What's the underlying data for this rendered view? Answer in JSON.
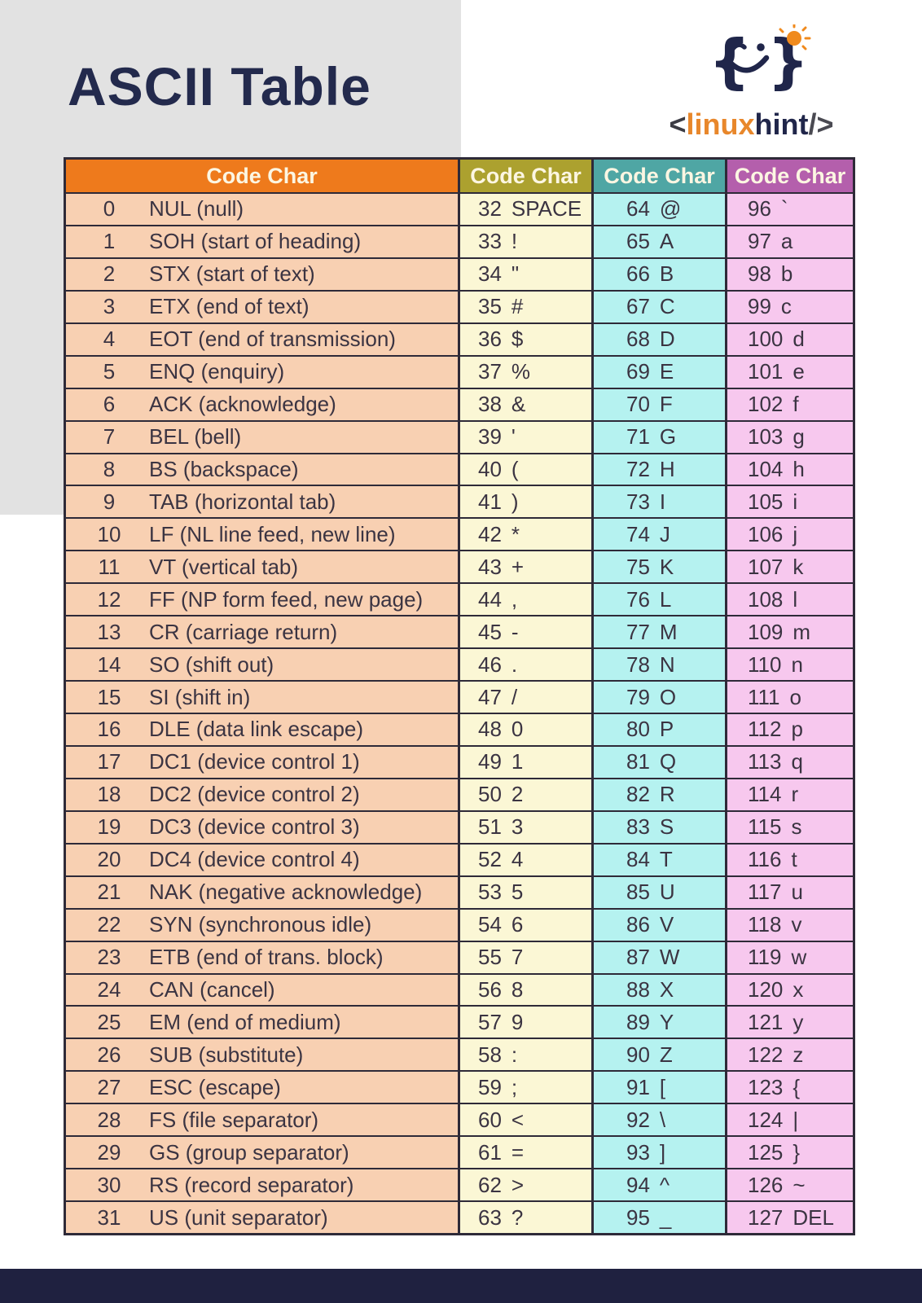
{
  "title": "ASCII Table",
  "logo": {
    "open": "<",
    "name1": "linux",
    "name2": "hint",
    "close": "/>",
    "icon": "winking-smiley-braces-with-sun"
  },
  "colors": {
    "page_bg": "#ffffff",
    "gray_panel": "#e2e2e2",
    "title_navy": "#232a4d",
    "footer_navy": "#1f2140",
    "border": "#2e2a38",
    "header_text": "#fcf6e2",
    "cell_text": "#3b3442",
    "col1_header": "#ee7a1c",
    "col1_row": "#f8d0b2",
    "col2_header": "#aca12f",
    "col2_row": "#fbf7d5",
    "col3_header": "#4fa6a4",
    "col3_row": "#b5f2f0",
    "col4_header": "#b45fac",
    "col4_row": "#f7c8ee",
    "logo_orange": "#e8872b",
    "logo_navy": "#20264a"
  },
  "table": {
    "columns": [
      {
        "header": "Code Char",
        "theme": "orange",
        "rows": [
          {
            "code": "0",
            "char": "NUL (null)"
          },
          {
            "code": "1",
            "char": "SOH (start of heading)"
          },
          {
            "code": "2",
            "char": "STX (start of text)"
          },
          {
            "code": "3",
            "char": "ETX (end of text)"
          },
          {
            "code": "4",
            "char": "EOT (end of transmission)"
          },
          {
            "code": "5",
            "char": "ENQ (enquiry)"
          },
          {
            "code": "6",
            "char": "ACK (acknowledge)"
          },
          {
            "code": "7",
            "char": "BEL (bell)"
          },
          {
            "code": "8",
            "char": "BS  (backspace)"
          },
          {
            "code": "9",
            "char": "TAB (horizontal tab)"
          },
          {
            "code": "10",
            "char": "LF  (NL line feed, new line)"
          },
          {
            "code": "11",
            "char": "VT  (vertical tab)"
          },
          {
            "code": "12",
            "char": "FF  (NP form feed, new page)"
          },
          {
            "code": "13",
            "char": "CR  (carriage return)"
          },
          {
            "code": "14",
            "char": "SO  (shift out)"
          },
          {
            "code": "15",
            "char": "SI  (shift in)"
          },
          {
            "code": "16",
            "char": "DLE (data link escape)"
          },
          {
            "code": "17",
            "char": "DC1 (device control 1)"
          },
          {
            "code": "18",
            "char": "DC2 (device control 2)"
          },
          {
            "code": "19",
            "char": "DC3 (device control 3)"
          },
          {
            "code": "20",
            "char": "DC4 (device control 4)"
          },
          {
            "code": "21",
            "char": "NAK (negative acknowledge)"
          },
          {
            "code": "22",
            "char": "SYN (synchronous idle)"
          },
          {
            "code": "23",
            "char": "ETB (end of trans. block)"
          },
          {
            "code": "24",
            "char": "CAN (cancel)"
          },
          {
            "code": "25",
            "char": "EM  (end of medium)"
          },
          {
            "code": "26",
            "char": "SUB (substitute)"
          },
          {
            "code": "27",
            "char": "ESC (escape)"
          },
          {
            "code": "28",
            "char": "FS  (file separator)"
          },
          {
            "code": "29",
            "char": "GS  (group separator)"
          },
          {
            "code": "30",
            "char": "RS  (record separator)"
          },
          {
            "code": "31",
            "char": "US  (unit separator)"
          }
        ]
      },
      {
        "header": "Code Char",
        "theme": "yellow",
        "rows": [
          {
            "code": "32",
            "char": "SPACE"
          },
          {
            "code": "33",
            "char": "!"
          },
          {
            "code": "34",
            "char": "\""
          },
          {
            "code": "35",
            "char": "#"
          },
          {
            "code": "36",
            "char": "$"
          },
          {
            "code": "37",
            "char": "%"
          },
          {
            "code": "38",
            "char": "&"
          },
          {
            "code": "39",
            "char": "'"
          },
          {
            "code": "40",
            "char": "("
          },
          {
            "code": "41",
            "char": ")"
          },
          {
            "code": "42",
            "char": "*"
          },
          {
            "code": "43",
            "char": "+"
          },
          {
            "code": "44",
            "char": ","
          },
          {
            "code": "45",
            "char": "-"
          },
          {
            "code": "46",
            "char": "."
          },
          {
            "code": "47",
            "char": "/"
          },
          {
            "code": "48",
            "char": "0"
          },
          {
            "code": "49",
            "char": "1"
          },
          {
            "code": "50",
            "char": "2"
          },
          {
            "code": "51",
            "char": "3"
          },
          {
            "code": "52",
            "char": "4"
          },
          {
            "code": "53",
            "char": "5"
          },
          {
            "code": "54",
            "char": "6"
          },
          {
            "code": "55",
            "char": "7"
          },
          {
            "code": "56",
            "char": "8"
          },
          {
            "code": "57",
            "char": "9"
          },
          {
            "code": "58",
            "char": ":"
          },
          {
            "code": "59",
            "char": ";"
          },
          {
            "code": "60",
            "char": "<"
          },
          {
            "code": "61",
            "char": "="
          },
          {
            "code": "62",
            "char": ">"
          },
          {
            "code": "63",
            "char": "?"
          }
        ]
      },
      {
        "header": "Code Char",
        "theme": "teal",
        "rows": [
          {
            "code": "64",
            "char": "@"
          },
          {
            "code": "65",
            "char": "A"
          },
          {
            "code": "66",
            "char": "B"
          },
          {
            "code": "67",
            "char": "C"
          },
          {
            "code": "68",
            "char": "D"
          },
          {
            "code": "69",
            "char": "E"
          },
          {
            "code": "70",
            "char": "F"
          },
          {
            "code": "71",
            "char": "G"
          },
          {
            "code": "72",
            "char": "H"
          },
          {
            "code": "73",
            "char": "I"
          },
          {
            "code": "74",
            "char": "J"
          },
          {
            "code": "75",
            "char": "K"
          },
          {
            "code": "76",
            "char": "L"
          },
          {
            "code": "77",
            "char": "M"
          },
          {
            "code": "78",
            "char": "N"
          },
          {
            "code": "79",
            "char": "O"
          },
          {
            "code": "80",
            "char": "P"
          },
          {
            "code": "81",
            "char": "Q"
          },
          {
            "code": "82",
            "char": "R"
          },
          {
            "code": "83",
            "char": "S"
          },
          {
            "code": "84",
            "char": "T"
          },
          {
            "code": "85",
            "char": "U"
          },
          {
            "code": "86",
            "char": "V"
          },
          {
            "code": "87",
            "char": "W"
          },
          {
            "code": "88",
            "char": "X"
          },
          {
            "code": "89",
            "char": "Y"
          },
          {
            "code": "90",
            "char": "Z"
          },
          {
            "code": "91",
            "char": "["
          },
          {
            "code": "92",
            "char": "\\"
          },
          {
            "code": "93",
            "char": "]"
          },
          {
            "code": "94",
            "char": "^"
          },
          {
            "code": "95",
            "char": "_"
          }
        ]
      },
      {
        "header": "Code Char",
        "theme": "purple",
        "rows": [
          {
            "code": "96",
            "char": "`"
          },
          {
            "code": "97",
            "char": "a"
          },
          {
            "code": "98",
            "char": "b"
          },
          {
            "code": "99",
            "char": "c"
          },
          {
            "code": "100",
            "char": "d"
          },
          {
            "code": "101",
            "char": "e"
          },
          {
            "code": "102",
            "char": "f"
          },
          {
            "code": "103",
            "char": "g"
          },
          {
            "code": "104",
            "char": "h"
          },
          {
            "code": "105",
            "char": "i"
          },
          {
            "code": "106",
            "char": "j"
          },
          {
            "code": "107",
            "char": "k"
          },
          {
            "code": "108",
            "char": "l"
          },
          {
            "code": "109",
            "char": "m"
          },
          {
            "code": "110",
            "char": "n"
          },
          {
            "code": "111",
            "char": "o"
          },
          {
            "code": "112",
            "char": "p"
          },
          {
            "code": "113",
            "char": "q"
          },
          {
            "code": "114",
            "char": "r"
          },
          {
            "code": "115",
            "char": "s"
          },
          {
            "code": "116",
            "char": "t"
          },
          {
            "code": "117",
            "char": "u"
          },
          {
            "code": "118",
            "char": "v"
          },
          {
            "code": "119",
            "char": "w"
          },
          {
            "code": "120",
            "char": "x"
          },
          {
            "code": "121",
            "char": "y"
          },
          {
            "code": "122",
            "char": "z"
          },
          {
            "code": "123",
            "char": "{"
          },
          {
            "code": "124",
            "char": "|"
          },
          {
            "code": "125",
            "char": "}"
          },
          {
            "code": "126",
            "char": "~"
          },
          {
            "code": "127",
            "char": "DEL"
          }
        ]
      }
    ]
  }
}
